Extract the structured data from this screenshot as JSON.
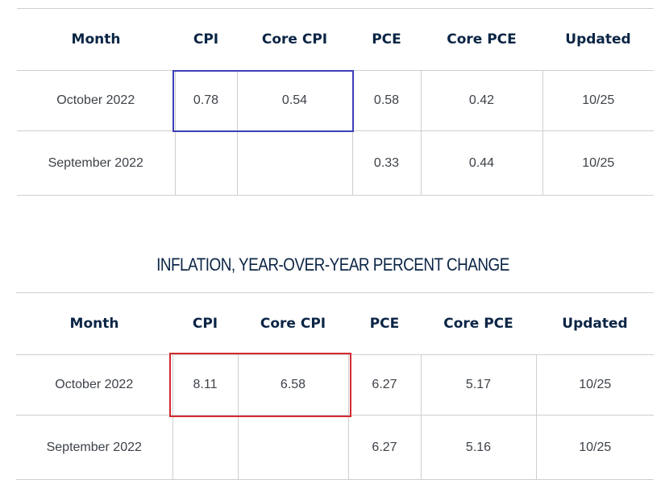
{
  "monthly_table": {
    "headers": [
      "Month",
      "CPI",
      "Core CPI",
      "PCE",
      "Core PCE",
      "Updated"
    ],
    "rows": [
      [
        "October 2022",
        "0.78",
        "0.54",
        "0.58",
        "0.42",
        "10/25"
      ],
      [
        "September 2022",
        "",
        "",
        "0.33",
        "0.44",
        "10/25"
      ]
    ]
  },
  "yoy_section": {
    "title": "INFLATION, YEAR-OVER-YEAR PERCENT CHANGE"
  },
  "yoy_table": {
    "headers": [
      "Month",
      "CPI",
      "Core CPI",
      "PCE",
      "Core PCE",
      "Updated"
    ],
    "rows": [
      [
        "October 2022",
        "8.11",
        "6.58",
        "6.27",
        "5.17",
        "10/25"
      ],
      [
        "September 2022",
        "",
        "",
        "6.27",
        "5.16",
        "10/25"
      ]
    ]
  },
  "colors": {
    "header_text": "#0b2545",
    "highlight_blue": "#3c3fb8",
    "highlight_red": "#d42a2f",
    "grid": "#cfcfcf"
  }
}
